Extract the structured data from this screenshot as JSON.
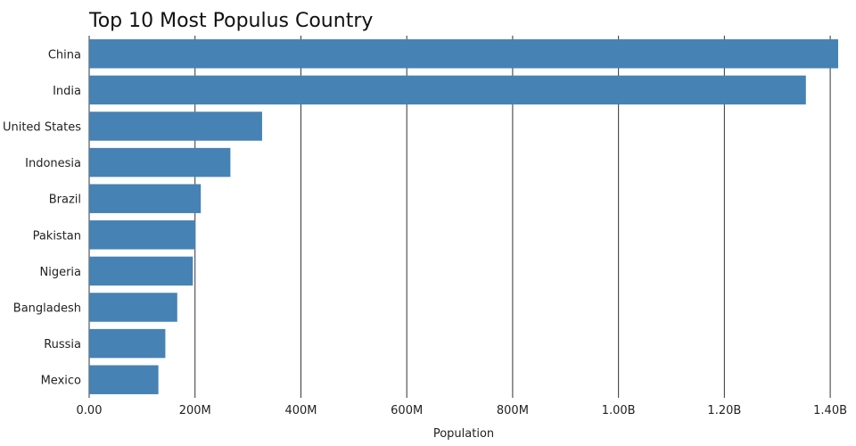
{
  "chart_data": {
    "type": "bar",
    "orientation": "horizontal",
    "title": "Top 10 Most Populus Country",
    "xlabel": "Population",
    "ylabel": "",
    "categories": [
      "China",
      "India",
      "United States",
      "Indonesia",
      "Brazil",
      "Pakistan",
      "Nigeria",
      "Bangladesh",
      "Russia",
      "Mexico"
    ],
    "values": [
      1415000000,
      1354000000,
      326700000,
      266800000,
      210900000,
      200800000,
      195900000,
      166400000,
      143900000,
      130800000
    ],
    "xlim": [
      0,
      1415000000
    ],
    "xticks": [
      0,
      200000000,
      400000000,
      600000000,
      800000000,
      1000000000,
      1200000000,
      1400000000
    ],
    "xtick_labels": [
      "0.00",
      "200M",
      "400M",
      "600M",
      "800M",
      "1.00B",
      "1.20B",
      "1.40B"
    ],
    "grid": true,
    "legend": "none",
    "bar_color": "#4682b4"
  }
}
